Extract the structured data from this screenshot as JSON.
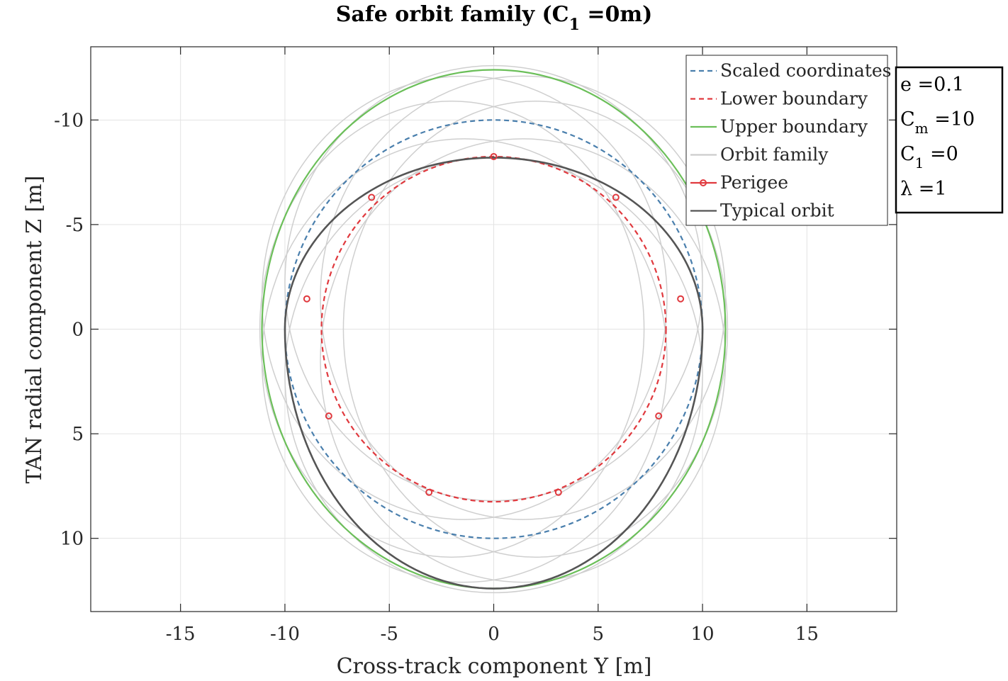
{
  "chart_data": {
    "type": "line",
    "title_main": "Safe orbit family (C",
    "title_sub": "1",
    "title_rest": " =0m)",
    "xlabel": "Cross-track component Y [m]",
    "ylabel": "TAN radial component Z [m]",
    "xlim": [
      -19.3,
      19.3
    ],
    "ylim": [
      -13.5,
      13.5
    ],
    "y_reversed": true,
    "grid": true,
    "x_ticks": [
      -15,
      -10,
      -5,
      0,
      5,
      10,
      15
    ],
    "y_ticks": [
      -10,
      -5,
      0,
      5,
      10
    ],
    "x_tick_labels": [
      "-15",
      "-10",
      "-5",
      "0",
      "5",
      "10",
      "15"
    ],
    "y_tick_labels": [
      "-10",
      "-5",
      "0",
      "5",
      "10"
    ],
    "legend_position": "top-right",
    "legend": [
      {
        "label": "Scaled coordinates",
        "style": "dashed",
        "color": "#4a7fad"
      },
      {
        "label": "Lower boundary",
        "style": "dashed",
        "color": "#e0393e"
      },
      {
        "label": "Upper boundary",
        "style": "solid",
        "color": "#6bbf59"
      },
      {
        "label": "Orbit family",
        "style": "solid",
        "color": "#cccccc"
      },
      {
        "label": "Perigee",
        "style": "solid-marker",
        "color": "#e0393e"
      },
      {
        "label": "Typical orbit",
        "style": "solid",
        "color": "#555555"
      }
    ],
    "series": [
      {
        "name": "Scaled coordinates",
        "kind": "circle",
        "center": [
          0,
          0
        ],
        "radius": 10
      },
      {
        "name": "Lower boundary",
        "kind": "circle",
        "center": [
          0,
          0
        ],
        "radius": 8.25
      },
      {
        "name": "Upper boundary",
        "kind": "ellipse",
        "center": [
          0,
          0
        ],
        "a": 11.1,
        "b": 12.4
      },
      {
        "name": "Typical orbit",
        "kind": "shifted-circle",
        "center": [
          0,
          -2.1
        ],
        "rx": 10.0,
        "ry_top": 8.2,
        "ry_bottom": 12.4
      }
    ],
    "orbit_family": [
      {
        "cx": 0.0,
        "cy": 2.2,
        "rx": 10.0,
        "ry": 10.4
      },
      {
        "cx": 1.4,
        "cy": 1.5,
        "rx": 9.7,
        "ry": 10.6
      },
      {
        "cx": 2.0,
        "cy": 0.0,
        "rx": 9.2,
        "ry": 10.9
      },
      {
        "cx": 1.4,
        "cy": -1.5,
        "rx": 9.7,
        "ry": 10.6
      },
      {
        "cx": 0.0,
        "cy": -2.2,
        "rx": 10.0,
        "ry": 10.4
      },
      {
        "cx": -1.4,
        "cy": -1.5,
        "rx": 9.7,
        "ry": 10.6
      },
      {
        "cx": -2.0,
        "cy": 0.0,
        "rx": 9.2,
        "ry": 10.9
      },
      {
        "cx": -1.4,
        "cy": 1.5,
        "rx": 9.7,
        "ry": 10.6
      }
    ],
    "perigee_points": [
      {
        "x": 0.0,
        "y": -8.25
      },
      {
        "x": 5.85,
        "y": -6.3
      },
      {
        "x": 8.95,
        "y": -1.45
      },
      {
        "x": 7.9,
        "y": 4.15
      },
      {
        "x": 3.1,
        "y": 7.8
      },
      {
        "x": -3.1,
        "y": 7.8
      },
      {
        "x": -7.9,
        "y": 4.15
      },
      {
        "x": -8.95,
        "y": -1.45
      },
      {
        "x": -5.85,
        "y": -6.3
      }
    ]
  },
  "annotation": {
    "lines": [
      {
        "base": "e =0.1",
        "sub": "",
        "rest": ""
      },
      {
        "base": "C",
        "sub": "m",
        "rest": " =10"
      },
      {
        "base": "C",
        "sub": "1",
        "rest": " =0"
      },
      {
        "base": "λ =1",
        "sub": "",
        "rest": ""
      }
    ]
  }
}
